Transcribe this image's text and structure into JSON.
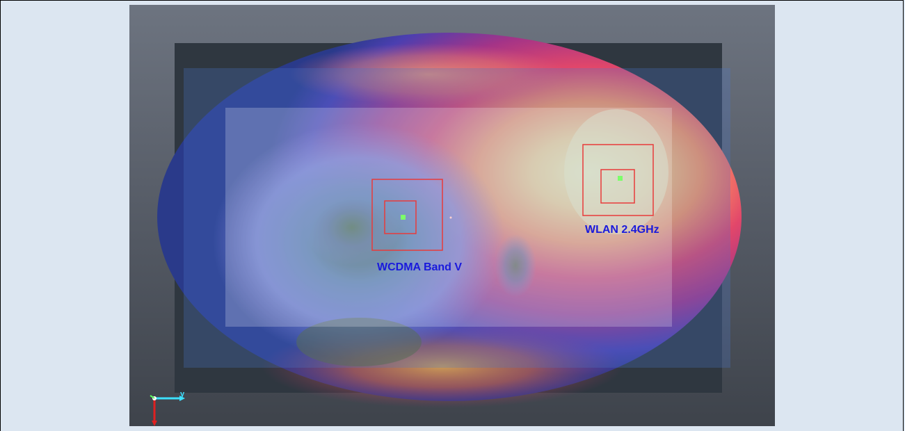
{
  "labels": {
    "wcdma": "WCDMA Band V",
    "wlan": "WLAN 2.4GHz"
  },
  "axis": {
    "y_label": "y"
  },
  "colors": {
    "label_text": "#1a1adc",
    "box_stroke": "#e83a3a",
    "marker": "#7cff6a",
    "background": "#dce6f1"
  }
}
